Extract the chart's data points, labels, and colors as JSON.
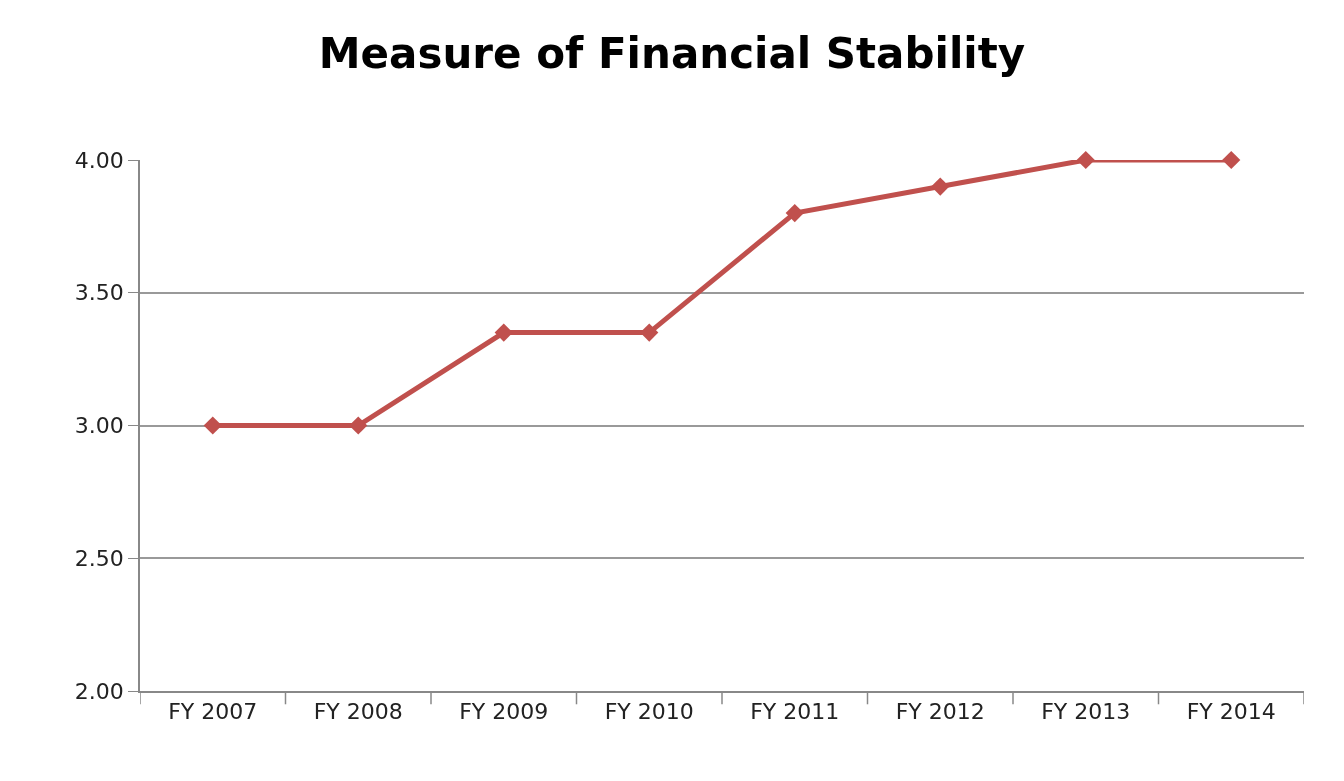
{
  "chart_data": {
    "type": "line",
    "title": "Measure of Financial Stability",
    "categories": [
      "FY 2007",
      "FY 2008",
      "FY 2009",
      "FY 2010",
      "FY 2011",
      "FY 2012",
      "FY 2013",
      "FY 2014"
    ],
    "series": [
      {
        "color": "#c0504d",
        "values": [
          3.0,
          3.0,
          3.35,
          3.35,
          3.8,
          3.9,
          4.0,
          4.0
        ]
      }
    ],
    "ylim": [
      2.0,
      4.0
    ],
    "yticks": [
      {
        "value": 2.0,
        "label": "2.00"
      },
      {
        "value": 2.5,
        "label": "2.50"
      },
      {
        "value": 3.0,
        "label": "3.00"
      },
      {
        "value": 3.5,
        "label": "3.50"
      },
      {
        "value": 4.0,
        "label": "4.00"
      }
    ],
    "grid": "y",
    "marker": "diamond",
    "line_style": "solid"
  }
}
